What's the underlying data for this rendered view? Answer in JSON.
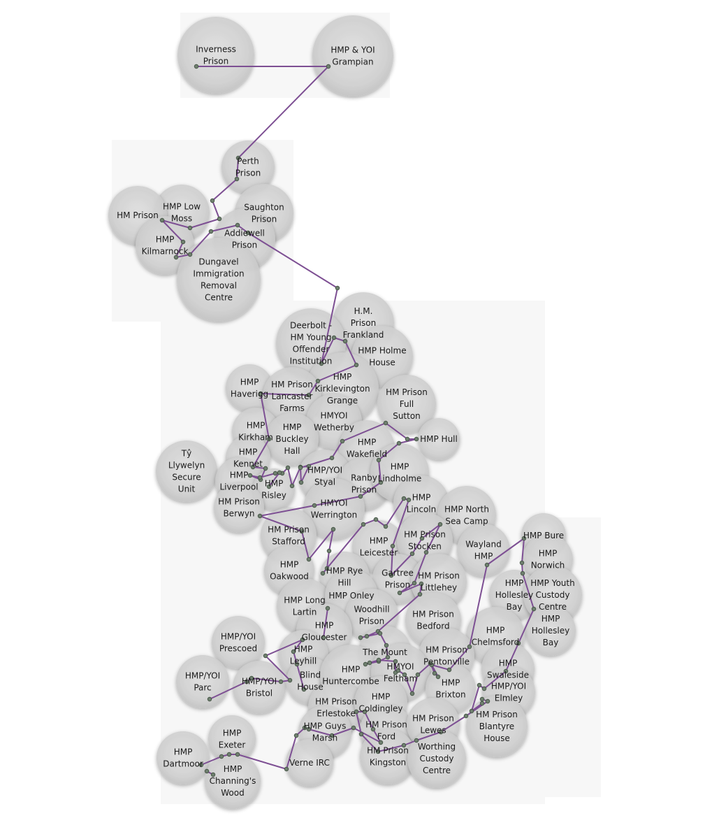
{
  "map": {
    "prisons": [
      {
        "id": "inverness",
        "lines": [
          "Inverness",
          "Prison"
        ]
      },
      {
        "id": "grampian",
        "lines": [
          "HMP & YOI",
          "Grampian"
        ]
      },
      {
        "id": "perth",
        "lines": [
          "Perth",
          "Prison"
        ]
      },
      {
        "id": "low-moss",
        "lines": [
          "HMP Low",
          "Moss"
        ]
      },
      {
        "id": "hm-prison-scot",
        "lines": [
          "HM Prison"
        ]
      },
      {
        "id": "saughton",
        "lines": [
          "Saughton",
          "Prison"
        ]
      },
      {
        "id": "addiewell",
        "lines": [
          "Addiewell",
          "Prison"
        ]
      },
      {
        "id": "kilmarnock",
        "lines": [
          "HMP",
          "Kilmarnock"
        ]
      },
      {
        "id": "dungavel",
        "lines": [
          "Dungavel",
          "Immigration",
          "Removal",
          "Centre"
        ]
      },
      {
        "id": "frankland",
        "lines": [
          "H.M.",
          "Prison",
          "Frankland"
        ]
      },
      {
        "id": "deerbolt",
        "lines": [
          "Deerbolt -",
          "HM Young",
          "Offender",
          "Institution"
        ]
      },
      {
        "id": "holme-house",
        "lines": [
          "HMP Holme",
          "House"
        ]
      },
      {
        "id": "kirklevington",
        "lines": [
          "HMP",
          "Kirklevington",
          "Grange"
        ]
      },
      {
        "id": "haverigg",
        "lines": [
          "HMP",
          "Haverigg"
        ]
      },
      {
        "id": "lancaster-farms",
        "lines": [
          "HM Prison",
          "Lancaster",
          "Farms"
        ]
      },
      {
        "id": "full-sutton",
        "lines": [
          "HM Prison",
          "Full",
          "Sutton"
        ]
      },
      {
        "id": "wetherby",
        "lines": [
          "HMYOI",
          "Wetherby"
        ]
      },
      {
        "id": "kirkham",
        "lines": [
          "HMP",
          "Kirkham"
        ]
      },
      {
        "id": "buckley-hall",
        "lines": [
          "HMP",
          "Buckley",
          "Hall"
        ]
      },
      {
        "id": "wakefield",
        "lines": [
          "HMP",
          "Wakefield"
        ]
      },
      {
        "id": "hull",
        "lines": [
          "HMP Hull"
        ]
      },
      {
        "id": "ty-llywelyn",
        "lines": [
          "Tŷ",
          "Llywelyn",
          "Secure",
          "Unit"
        ]
      },
      {
        "id": "kennet",
        "lines": [
          "HMP",
          "Kennet"
        ]
      },
      {
        "id": "liverpool",
        "lines": [
          "HMP",
          "Liverpool"
        ]
      },
      {
        "id": "styal",
        "lines": [
          "HMP/YOI",
          "Styal"
        ]
      },
      {
        "id": "risley",
        "lines": [
          "HMP",
          "Risley"
        ]
      },
      {
        "id": "ranby",
        "lines": [
          "Ranby",
          "Prison"
        ]
      },
      {
        "id": "lindholme",
        "lines": [
          "HMP",
          "Lindholme"
        ]
      },
      {
        "id": "berwyn",
        "lines": [
          "HM Prison",
          "Berwyn"
        ]
      },
      {
        "id": "werrington",
        "lines": [
          "HMYOI",
          "Werrington"
        ]
      },
      {
        "id": "lincoln",
        "lines": [
          "HMP",
          "Lincoln"
        ]
      },
      {
        "id": "north-sea-camp",
        "lines": [
          "HMP North",
          "Sea Camp"
        ]
      },
      {
        "id": "stafford",
        "lines": [
          "HM Prison",
          "Stafford"
        ]
      },
      {
        "id": "leicester",
        "lines": [
          "HMP",
          "Leicester"
        ]
      },
      {
        "id": "stocken",
        "lines": [
          "HM Prison",
          "Stocken"
        ]
      },
      {
        "id": "wayland",
        "lines": [
          "Wayland",
          "HMP"
        ]
      },
      {
        "id": "bure",
        "lines": [
          "HMP Bure"
        ]
      },
      {
        "id": "norwich",
        "lines": [
          "HMP",
          "Norwich"
        ]
      },
      {
        "id": "oakwood",
        "lines": [
          "HMP",
          "Oakwood"
        ]
      },
      {
        "id": "rye-hill",
        "lines": [
          "HMP Rye",
          "Hill"
        ]
      },
      {
        "id": "gartree",
        "lines": [
          "Gartree",
          "Prison"
        ]
      },
      {
        "id": "littlehey",
        "lines": [
          "HM Prison",
          "Littlehey"
        ]
      },
      {
        "id": "hollesley-bay-1",
        "lines": [
          "HMP",
          "Hollesley",
          "Bay"
        ]
      },
      {
        "id": "hollesley-youth",
        "lines": [
          "HMP Youth",
          "Custody",
          "Centre"
        ]
      },
      {
        "id": "long-lartin",
        "lines": [
          "HMP Long",
          "Lartin"
        ]
      },
      {
        "id": "onley",
        "lines": [
          "HMP Onley"
        ]
      },
      {
        "id": "woodhill",
        "lines": [
          "Woodhill",
          "Prison"
        ]
      },
      {
        "id": "bedford",
        "lines": [
          "HM Prison",
          "Bedford"
        ]
      },
      {
        "id": "hollesley-bay-2",
        "lines": [
          "HMP",
          "Hollesley",
          "Bay"
        ]
      },
      {
        "id": "gloucester",
        "lines": [
          "HMP",
          "Gloucester"
        ]
      },
      {
        "id": "chelmsford",
        "lines": [
          "HMP",
          "Chelmsford"
        ]
      },
      {
        "id": "prescoed",
        "lines": [
          "HMP/YOI",
          "Prescoed"
        ]
      },
      {
        "id": "leyhill",
        "lines": [
          "HMP",
          "Leyhill"
        ]
      },
      {
        "id": "the-mount",
        "lines": [
          "The Mount"
        ]
      },
      {
        "id": "pentonville",
        "lines": [
          "HM Prison",
          "Pentonville"
        ]
      },
      {
        "id": "parc",
        "lines": [
          "HMP/YOI",
          "Parc"
        ]
      },
      {
        "id": "bristol",
        "lines": [
          "HMP/YOI",
          "Bristol"
        ]
      },
      {
        "id": "blind-house",
        "lines": [
          "Blind",
          "House"
        ]
      },
      {
        "id": "huntercombe",
        "lines": [
          "HMP",
          "Huntercombe"
        ]
      },
      {
        "id": "feltham",
        "lines": [
          "HMYOI",
          "Feltham"
        ]
      },
      {
        "id": "brixton",
        "lines": [
          "HMP",
          "Brixton"
        ]
      },
      {
        "id": "swaleside",
        "lines": [
          "HMP",
          "Swaleside"
        ]
      },
      {
        "id": "elmley",
        "lines": [
          "HMP/YOI",
          "Elmley"
        ]
      },
      {
        "id": "erlestoke",
        "lines": [
          "HM Prison",
          "Erlestoke"
        ]
      },
      {
        "id": "coldingley",
        "lines": [
          "HMP",
          "Coldingley"
        ]
      },
      {
        "id": "blantyre",
        "lines": [
          "HM Prison",
          "Blantyre",
          "House"
        ]
      },
      {
        "id": "guys-marsh",
        "lines": [
          "HMP Guys",
          "Marsh"
        ]
      },
      {
        "id": "ford",
        "lines": [
          "HM Prison",
          "Ford"
        ]
      },
      {
        "id": "lewes",
        "lines": [
          "HM Prison",
          "Lewes"
        ]
      },
      {
        "id": "exeter",
        "lines": [
          "HMP",
          "Exeter"
        ]
      },
      {
        "id": "kingston",
        "lines": [
          "HM Prison",
          "Kingston"
        ]
      },
      {
        "id": "worthing",
        "lines": [
          "Worthing",
          "Custody",
          "Centre"
        ]
      },
      {
        "id": "dartmoor",
        "lines": [
          "HMP",
          "Dartmoor"
        ]
      },
      {
        "id": "verne",
        "lines": [
          "Verne IRC"
        ]
      },
      {
        "id": "channings-wood",
        "lines": [
          "HMP",
          "Channing's",
          "Wood"
        ]
      }
    ],
    "colors": {
      "route": "#7d4f93",
      "circle": "#cfcfcf",
      "point": "#6f7f6f"
    }
  }
}
